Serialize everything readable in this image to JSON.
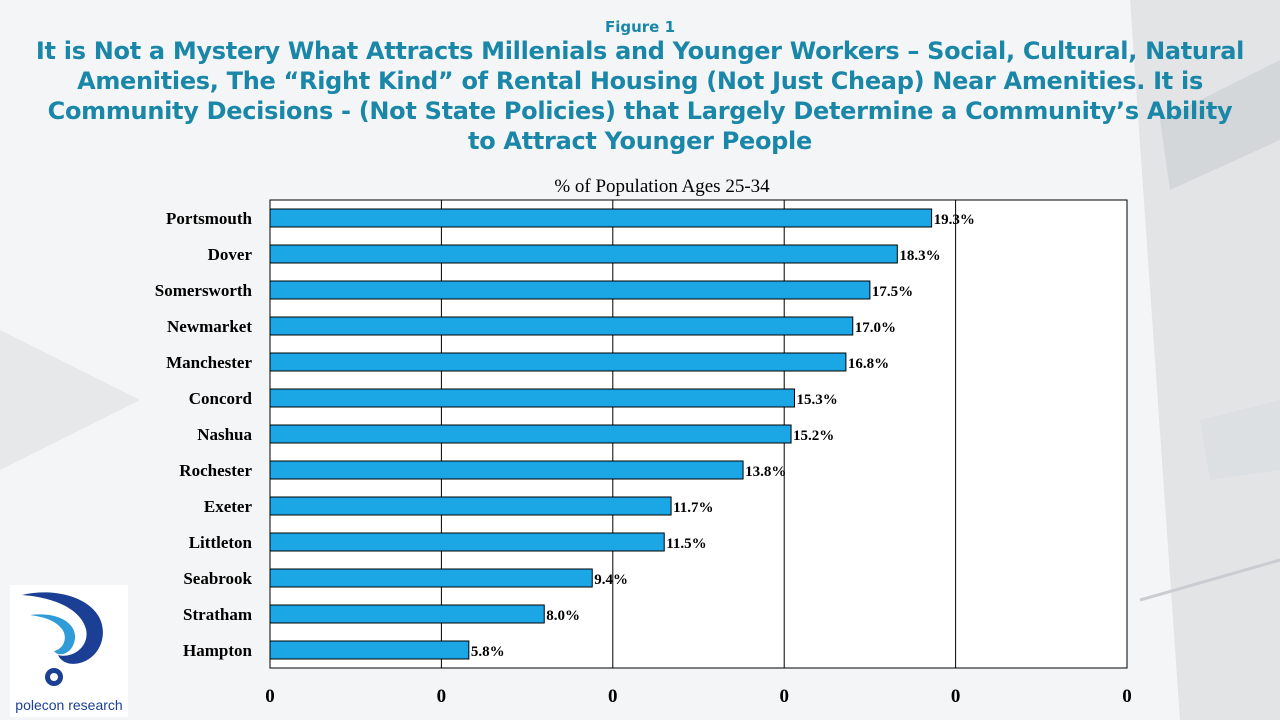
{
  "header": {
    "figure_label": "Figure 1",
    "headline": "It is Not a Mystery What Attracts Millenials and Younger Workers – Social, Cultural, Natural Amenities, The “Right Kind” of Rental Housing (Not Just Cheap) Near Amenities.  It is Community Decisions - (Not State Policies) that Largely Determine a Community’s Ability to Attract Younger People"
  },
  "logo": {
    "text": "polecon research"
  },
  "colors": {
    "bar": "#1ba6e6",
    "header": "#1a86a8",
    "logo": "#1b3f95"
  },
  "chart_data": {
    "type": "bar",
    "orientation": "horizontal",
    "title": "% of Population Ages 25-34",
    "categories": [
      "Portsmouth",
      "Dover",
      "Somersworth",
      "Newmarket",
      "Manchester",
      "Concord",
      "Nashua",
      "Rochester",
      "Exeter",
      "Littleton",
      "Seabrook",
      "Stratham",
      "Hampton"
    ],
    "values": [
      19.3,
      18.3,
      17.5,
      17.0,
      16.8,
      15.3,
      15.2,
      13.8,
      11.7,
      11.5,
      9.4,
      8.0,
      5.8
    ],
    "data_labels": [
      "19.3%",
      "18.3%",
      "17.5%",
      "17.0%",
      "16.8%",
      "15.3%",
      "15.2%",
      "13.8%",
      "11.7%",
      "11.5%",
      "9.4%",
      "8.0%",
      "5.8%"
    ],
    "x_tick_labels": [
      "0",
      "0",
      "0",
      "0",
      "0",
      "0"
    ],
    "xlim": [
      0,
      25
    ],
    "grid": true
  }
}
